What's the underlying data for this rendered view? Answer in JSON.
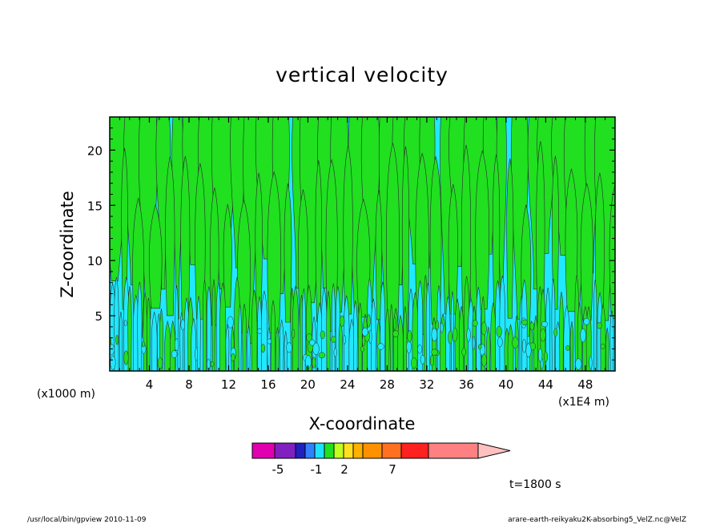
{
  "chart_data": {
    "type": "contour",
    "title": "vertical velocity",
    "xlabel": "X-coordinate",
    "ylabel": "Z-coordinate",
    "x_unit_left": "(x1000 m)",
    "x_unit_right": "(x1E4 m)",
    "x_tick_labels": [
      "4",
      "8",
      "12",
      "16",
      "20",
      "24",
      "28",
      "32",
      "36",
      "40",
      "44",
      "48"
    ],
    "x_ticks": [
      4,
      8,
      12,
      16,
      20,
      24,
      28,
      32,
      36,
      40,
      44,
      48
    ],
    "xlim": [
      0,
      51
    ],
    "y_tick_labels": [
      "5",
      "10",
      "15",
      "20"
    ],
    "y_ticks": [
      5,
      10,
      15,
      20
    ],
    "ylim": [
      0,
      23
    ],
    "colorbar": {
      "tick_labels": [
        "-5",
        "-1",
        "2",
        "7"
      ],
      "tick_values": [
        -5,
        -1,
        2,
        7
      ],
      "colors": [
        "#e000b0",
        "#8020c0",
        "#2020c0",
        "#3080ff",
        "#20e0ff",
        "#20e020",
        "#c0ff20",
        "#ffe020",
        "#ffb000",
        "#ff9000",
        "#ff7020",
        "#ff2020",
        "#ff8080",
        "#ffc0c0"
      ]
    },
    "field_colors": {
      "negative": "#20e8ff",
      "positive": "#20e020",
      "contour": "#2a2a2a"
    },
    "time_label": "t=1800 s"
  },
  "footer": {
    "left": "/usr/local/bin/gpview   2010-11-09",
    "right": "arare-earth-reikyaku2K-absorbing5_VelZ.nc@VelZ"
  }
}
